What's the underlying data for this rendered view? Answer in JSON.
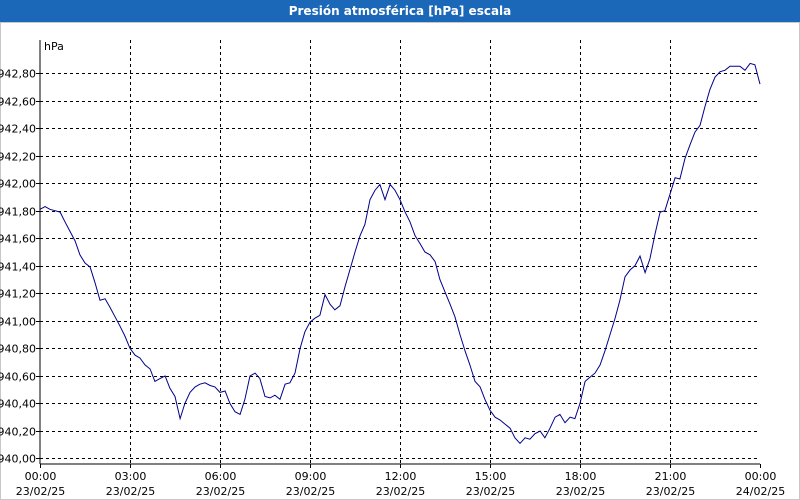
{
  "chart_data": {
    "type": "line",
    "title": "Presión atmosférica [hPa] escala",
    "ylabel": "hPa",
    "xlabel": "",
    "ylim": [
      939.96,
      943.04
    ],
    "xlim_hours": [
      0,
      24
    ],
    "grid": true,
    "y_ticks": [
      {
        "value": 942.8,
        "label": "942,80"
      },
      {
        "value": 942.6,
        "label": "942,60"
      },
      {
        "value": 942.4,
        "label": "942,40"
      },
      {
        "value": 942.2,
        "label": "942,20"
      },
      {
        "value": 942.0,
        "label": "942,00"
      },
      {
        "value": 941.8,
        "label": "941,80"
      },
      {
        "value": 941.6,
        "label": "941,60"
      },
      {
        "value": 941.4,
        "label": "941,40"
      },
      {
        "value": 941.2,
        "label": "941,20"
      },
      {
        "value": 941.0,
        "label": "941,00"
      },
      {
        "value": 940.8,
        "label": "940,80"
      },
      {
        "value": 940.6,
        "label": "940,60"
      },
      {
        "value": 940.4,
        "label": "940,40"
      },
      {
        "value": 940.2,
        "label": "940,20"
      },
      {
        "value": 940.0,
        "label": "940,00"
      }
    ],
    "x_ticks": [
      {
        "hour": 0,
        "time": "00:00",
        "date": "23/02/25"
      },
      {
        "hour": 3,
        "time": "03:00",
        "date": "23/02/25"
      },
      {
        "hour": 6,
        "time": "06:00",
        "date": "23/02/25"
      },
      {
        "hour": 9,
        "time": "09:00",
        "date": "23/02/25"
      },
      {
        "hour": 12,
        "time": "12:00",
        "date": "23/02/25"
      },
      {
        "hour": 15,
        "time": "15:00",
        "date": "23/02/25"
      },
      {
        "hour": 18,
        "time": "18:00",
        "date": "23/02/25"
      },
      {
        "hour": 21,
        "time": "21:00",
        "date": "23/02/25"
      },
      {
        "hour": 24,
        "time": "00:00",
        "date": "24/02/25"
      }
    ],
    "series": [
      {
        "name": "Presión atmosférica",
        "color": "#00008b",
        "points": [
          [
            0.0,
            941.81
          ],
          [
            0.17,
            941.83
          ],
          [
            0.33,
            941.81
          ],
          [
            0.5,
            941.8
          ],
          [
            0.67,
            941.79
          ],
          [
            0.83,
            941.72
          ],
          [
            1.0,
            941.65
          ],
          [
            1.17,
            941.58
          ],
          [
            1.33,
            941.48
          ],
          [
            1.5,
            941.42
          ],
          [
            1.67,
            941.39
          ],
          [
            1.83,
            941.28
          ],
          [
            2.0,
            941.15
          ],
          [
            2.17,
            941.16
          ],
          [
            2.33,
            941.1
          ],
          [
            2.5,
            941.03
          ],
          [
            2.67,
            940.96
          ],
          [
            2.83,
            940.89
          ],
          [
            3.0,
            940.8
          ],
          [
            3.17,
            940.75
          ],
          [
            3.33,
            940.73
          ],
          [
            3.5,
            940.68
          ],
          [
            3.67,
            940.65
          ],
          [
            3.83,
            940.56
          ],
          [
            4.0,
            940.58
          ],
          [
            4.17,
            940.6
          ],
          [
            4.33,
            940.51
          ],
          [
            4.5,
            940.45
          ],
          [
            4.67,
            940.29
          ],
          [
            4.83,
            940.4
          ],
          [
            5.0,
            940.48
          ],
          [
            5.17,
            940.52
          ],
          [
            5.33,
            940.54
          ],
          [
            5.5,
            940.55
          ],
          [
            5.67,
            940.53
          ],
          [
            5.83,
            940.52
          ],
          [
            6.0,
            940.48
          ],
          [
            6.17,
            940.49
          ],
          [
            6.33,
            940.4
          ],
          [
            6.5,
            940.34
          ],
          [
            6.67,
            940.32
          ],
          [
            6.83,
            940.43
          ],
          [
            7.0,
            940.6
          ],
          [
            7.17,
            940.62
          ],
          [
            7.33,
            940.58
          ],
          [
            7.5,
            940.45
          ],
          [
            7.67,
            940.44
          ],
          [
            7.83,
            940.46
          ],
          [
            8.0,
            940.43
          ],
          [
            8.17,
            940.54
          ],
          [
            8.33,
            940.55
          ],
          [
            8.5,
            940.62
          ],
          [
            8.67,
            940.8
          ],
          [
            8.83,
            940.92
          ],
          [
            9.0,
            940.99
          ],
          [
            9.17,
            941.02
          ],
          [
            9.33,
            941.04
          ],
          [
            9.5,
            941.19
          ],
          [
            9.67,
            941.12
          ],
          [
            9.83,
            941.08
          ],
          [
            10.0,
            941.11
          ],
          [
            10.17,
            941.25
          ],
          [
            10.33,
            941.37
          ],
          [
            10.5,
            941.5
          ],
          [
            10.67,
            941.62
          ],
          [
            10.83,
            941.7
          ],
          [
            11.0,
            941.88
          ],
          [
            11.17,
            941.95
          ],
          [
            11.33,
            941.99
          ],
          [
            11.5,
            941.88
          ],
          [
            11.67,
            941.99
          ],
          [
            11.83,
            941.95
          ],
          [
            12.0,
            941.88
          ],
          [
            12.17,
            941.79
          ],
          [
            12.33,
            941.72
          ],
          [
            12.5,
            941.62
          ],
          [
            12.67,
            941.56
          ],
          [
            12.83,
            941.5
          ],
          [
            13.0,
            941.48
          ],
          [
            13.17,
            941.43
          ],
          [
            13.33,
            941.3
          ],
          [
            13.5,
            941.21
          ],
          [
            13.67,
            941.12
          ],
          [
            13.83,
            941.03
          ],
          [
            14.0,
            940.9
          ],
          [
            14.17,
            940.78
          ],
          [
            14.33,
            940.68
          ],
          [
            14.5,
            940.56
          ],
          [
            14.67,
            940.52
          ],
          [
            14.83,
            940.43
          ],
          [
            15.0,
            940.35
          ],
          [
            15.17,
            940.3
          ],
          [
            15.33,
            940.28
          ],
          [
            15.5,
            940.25
          ],
          [
            15.67,
            940.22
          ],
          [
            15.83,
            940.15
          ],
          [
            16.0,
            940.11
          ],
          [
            16.17,
            940.15
          ],
          [
            16.33,
            940.14
          ],
          [
            16.5,
            940.18
          ],
          [
            16.67,
            940.2
          ],
          [
            16.83,
            940.15
          ],
          [
            17.0,
            940.22
          ],
          [
            17.17,
            940.3
          ],
          [
            17.33,
            940.32
          ],
          [
            17.5,
            940.26
          ],
          [
            17.67,
            940.3
          ],
          [
            17.83,
            940.29
          ],
          [
            18.0,
            940.4
          ],
          [
            18.17,
            940.56
          ],
          [
            18.33,
            940.59
          ],
          [
            18.5,
            940.62
          ],
          [
            18.67,
            940.68
          ],
          [
            18.83,
            940.78
          ],
          [
            19.0,
            940.9
          ],
          [
            19.17,
            941.02
          ],
          [
            19.33,
            941.15
          ],
          [
            19.5,
            941.32
          ],
          [
            19.67,
            941.37
          ],
          [
            19.83,
            941.4
          ],
          [
            20.0,
            941.47
          ],
          [
            20.17,
            941.35
          ],
          [
            20.33,
            941.45
          ],
          [
            20.5,
            941.63
          ],
          [
            20.67,
            941.79
          ],
          [
            20.83,
            941.8
          ],
          [
            21.0,
            941.92
          ],
          [
            21.17,
            942.04
          ],
          [
            21.33,
            942.03
          ],
          [
            21.5,
            942.18
          ],
          [
            21.67,
            942.28
          ],
          [
            21.83,
            942.37
          ],
          [
            22.0,
            942.42
          ],
          [
            22.17,
            942.56
          ],
          [
            22.33,
            942.68
          ],
          [
            22.5,
            942.77
          ],
          [
            22.67,
            942.81
          ],
          [
            22.83,
            942.82
          ],
          [
            23.0,
            942.85
          ],
          [
            23.17,
            942.85
          ],
          [
            23.33,
            942.85
          ],
          [
            23.5,
            942.82
          ],
          [
            23.67,
            942.87
          ],
          [
            23.83,
            942.86
          ],
          [
            24.0,
            942.72
          ]
        ]
      }
    ]
  }
}
